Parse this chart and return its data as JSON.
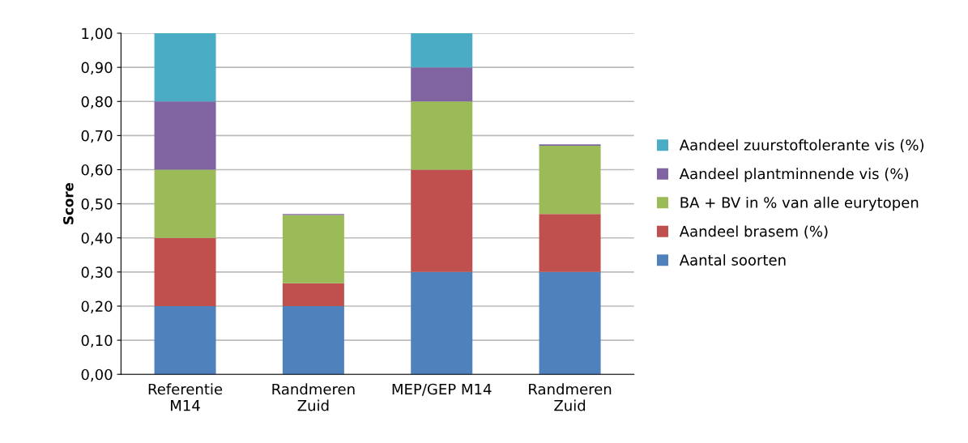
{
  "chart_data": {
    "type": "bar",
    "stacked": true,
    "ylabel": "Score",
    "categories": [
      "Referentie\nM14",
      "Randmeren\nZuid",
      "MEP/GEP M14",
      "Randmeren\nZuid"
    ],
    "series": [
      {
        "name": "Aantal soorten",
        "color": "#4f81bd",
        "values": [
          0.2,
          0.2,
          0.3,
          0.3
        ]
      },
      {
        "name": "Aandeel brasem (%)",
        "color": "#c0504d",
        "values": [
          0.2,
          0.067,
          0.3,
          0.17
        ]
      },
      {
        "name": "BA + BV in % van alle eurytopen",
        "color": "#9bbb59",
        "values": [
          0.2,
          0.2,
          0.2,
          0.2
        ]
      },
      {
        "name": "Aandeel plantminnende vis (%)",
        "color": "#8064a2",
        "values": [
          0.2,
          0.003,
          0.1,
          0.004
        ]
      },
      {
        "name": "Aandeel zuurstoftolerante vis (%)",
        "color": "#4bacc6",
        "values": [
          0.2,
          null,
          0.1,
          null
        ]
      }
    ],
    "ylim": [
      0,
      1
    ],
    "yticks": [
      {
        "value": 0,
        "label": "0,00"
      },
      {
        "value": 0.1,
        "label": "0,10"
      },
      {
        "value": 0.2,
        "label": "0,20"
      },
      {
        "value": 0.3,
        "label": "0,30"
      },
      {
        "value": 0.4,
        "label": "0,40"
      },
      {
        "value": 0.5,
        "label": "0,50"
      },
      {
        "value": 0.6,
        "label": "0,60"
      },
      {
        "value": 0.7,
        "label": "0,70"
      },
      {
        "value": 0.8,
        "label": "0,80"
      },
      {
        "value": 0.9,
        "label": "0,90"
      },
      {
        "value": 1,
        "label": "1,00"
      }
    ],
    "grid": "y",
    "legend": "right"
  }
}
